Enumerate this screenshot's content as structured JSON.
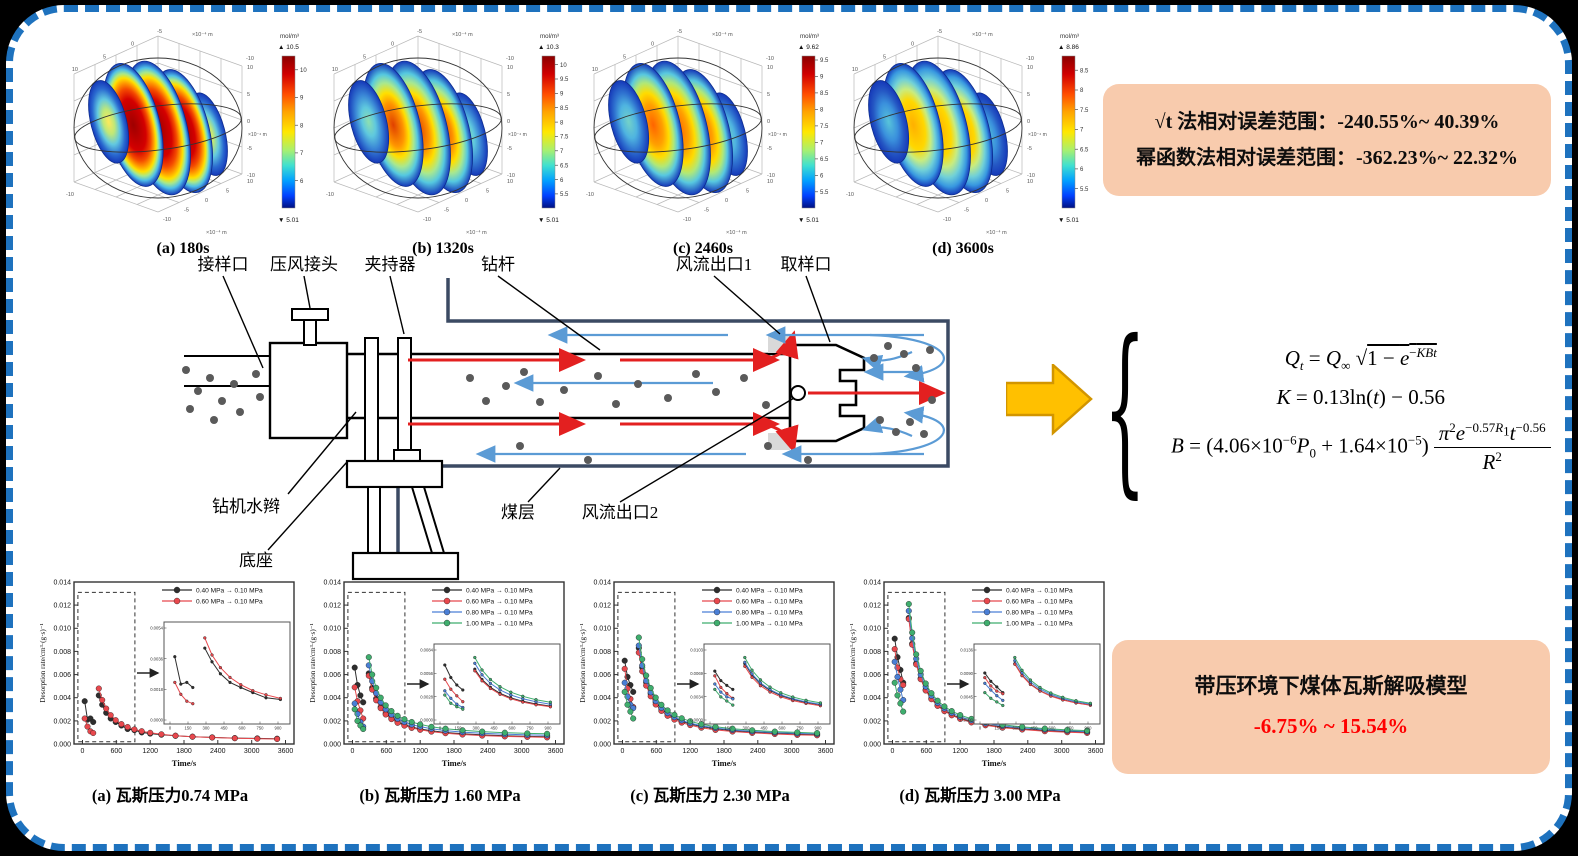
{
  "figure": {
    "border_color": "#1e72be",
    "background": "#ffffff",
    "box_color": "#f8cbad"
  },
  "plots3d": {
    "unit_label": "mol/m³",
    "axis_unit": "×10⁻⁴ m",
    "axis_ticks_top": [
      "10",
      "5",
      "0",
      "-5"
    ],
    "axis_ticks_vertical": [
      "10",
      "5",
      "0",
      "-5",
      "-10"
    ],
    "axis_ticks_bottom": [
      "10",
      "5",
      "0",
      "-5",
      "-10"
    ],
    "colorbar_min_label": "5.01",
    "colorbar_stops": [
      [
        0,
        "#8b0000"
      ],
      [
        0.12,
        "#d10000"
      ],
      [
        0.25,
        "#ff4d00"
      ],
      [
        0.37,
        "#ffa500"
      ],
      [
        0.5,
        "#ffe800"
      ],
      [
        0.62,
        "#a8f070"
      ],
      [
        0.72,
        "#40e0d0"
      ],
      [
        0.82,
        "#00a0ff"
      ],
      [
        0.92,
        "#0040ff"
      ],
      [
        1,
        "#001080"
      ]
    ],
    "items": [
      {
        "caption": "(a) 180s",
        "max": 10.5,
        "max_label": "10.5",
        "min": 5.01,
        "ticks": [
          10,
          9,
          8,
          7,
          6
        ],
        "stops": [
          [
            0,
            "#9e0000"
          ],
          [
            0.42,
            "#d40000"
          ],
          [
            0.58,
            "#f44a00"
          ],
          [
            0.68,
            "#ff9a00"
          ],
          [
            0.76,
            "#ffe100"
          ],
          [
            0.83,
            "#a8e88a"
          ],
          [
            0.9,
            "#4fc0e8"
          ],
          [
            1,
            "#1538b8"
          ]
        ],
        "stops_outer": [
          [
            0,
            "#ffe95a"
          ],
          [
            0.3,
            "#bfe878"
          ],
          [
            0.55,
            "#62c8e0"
          ],
          [
            0.8,
            "#2a6ad0"
          ],
          [
            1,
            "#1538b8"
          ]
        ]
      },
      {
        "caption": "(b) 1320s",
        "max": 10.3,
        "max_label": "10.3",
        "min": 5.01,
        "ticks": [
          10,
          9.5,
          9,
          8.5,
          8,
          7.5,
          7,
          6.5,
          6,
          5.5
        ],
        "stops": [
          [
            0,
            "#e04000"
          ],
          [
            0.35,
            "#ff9500"
          ],
          [
            0.52,
            "#ffe000"
          ],
          [
            0.68,
            "#a8e890"
          ],
          [
            0.82,
            "#55c8e0"
          ],
          [
            1,
            "#1538b8"
          ]
        ],
        "stops_outer": [
          [
            0,
            "#8ee0b0"
          ],
          [
            0.35,
            "#5fc8de"
          ],
          [
            0.65,
            "#3a86d6"
          ],
          [
            1,
            "#1538b8"
          ]
        ]
      },
      {
        "caption": "(c) 2460s",
        "max": 9.62,
        "max_label": "9.62",
        "min": 5.01,
        "ticks": [
          9.5,
          9,
          8.5,
          8,
          7.5,
          7,
          6.5,
          6,
          5.5
        ],
        "stops": [
          [
            0,
            "#ff6400"
          ],
          [
            0.33,
            "#ffa000"
          ],
          [
            0.52,
            "#ffdc00"
          ],
          [
            0.68,
            "#b0e878"
          ],
          [
            0.82,
            "#58c8e0"
          ],
          [
            1,
            "#1538b8"
          ]
        ],
        "stops_outer": [
          [
            0,
            "#74d2c8"
          ],
          [
            0.4,
            "#4fb4e0"
          ],
          [
            0.7,
            "#2f72d0"
          ],
          [
            1,
            "#1538b8"
          ]
        ]
      },
      {
        "caption": "(d) 3600s",
        "max": 8.86,
        "max_label": "8.86",
        "min": 5.01,
        "ticks": [
          8.5,
          8,
          7.5,
          7,
          6.5,
          6,
          5.5
        ],
        "stops": [
          [
            0,
            "#ffb000"
          ],
          [
            0.4,
            "#ffd800"
          ],
          [
            0.58,
            "#c8ec80"
          ],
          [
            0.74,
            "#70d0d8"
          ],
          [
            0.88,
            "#3898e0"
          ],
          [
            1,
            "#1538b8"
          ]
        ],
        "stops_outer": [
          [
            0,
            "#58c4da"
          ],
          [
            0.45,
            "#3a90dc"
          ],
          [
            0.75,
            "#2558c4"
          ],
          [
            1,
            "#1538b8"
          ]
        ]
      }
    ]
  },
  "error_box": {
    "line1": "√t 法相对误差范围：-240.55%~ 40.39%",
    "line2": "幂函数法相对误差范围：-362.23%~ 22.32%"
  },
  "model_box": {
    "title": "带压环境下煤体瓦斯解吸模型",
    "range": "-6.75% ~ 15.54%",
    "range_color": "#ff0000"
  },
  "equations": {
    "eq1": "<i>Q</i><sub><i>t</i></sub> = <i>Q</i><sub>∞</sub> √<span class=\"ol\">1 − <i>e</i><sup>−<i>KBt</i></sup></span>",
    "eq2": "<i>K</i> = 0.13ln(<i>t</i>) − 0.56",
    "eq3": "<i>B</i> = (4.06×10<sup>−6</sup><i>P</i><sub>0</sub> + 1.64×10<sup>−5</sup>)<span class=\"frac\"><span class=\"num\"><i>π</i><sup>2</sup><i>e</i><sup>−0.57<i>R</i><sub>1</sub></sup><i>t</i><sup>−0.56</sup></span><span class=\"den\"><i>R</i><sup>2</sup></span></span>"
  },
  "schematic": {
    "top_labels": [
      "接样口",
      "压风接头",
      "夹持器",
      "钻杆",
      "风流出口1",
      "取样口"
    ],
    "bottom_labels": [
      "钻机水辫",
      "底座",
      "煤层",
      "风流出口2"
    ],
    "air_in_color": "#e32020",
    "air_return_color": "#5b9bd5",
    "particle_color": "#5a5a5a"
  },
  "chart_data": {
    "type": "scatter",
    "shared": {
      "xlabel": "Time/s",
      "ylabel": "Desorption rate/cm³·(g·s)⁻¹",
      "xticks": [
        0,
        600,
        1200,
        1800,
        2400,
        3000,
        3600
      ],
      "xlim": [
        -150,
        3750
      ],
      "ylim": [
        0,
        0.014
      ],
      "ytick_step": 0.002,
      "t_first": [
        40,
        90,
        140,
        190
      ],
      "t_main": [
        290,
        350,
        420,
        500,
        590,
        690,
        800,
        920,
        1050,
        1200,
        1400,
        1650,
        1950,
        2300,
        2700,
        3100,
        3450
      ],
      "legend_position": "top-right",
      "grid": false
    },
    "items": [
      {
        "title": "(a) 瓦斯压力0.74 MPa",
        "series": [
          {
            "name": "0.40 MPa → 0.10 MPa",
            "color": "#2e2e2e",
            "first": [
              0.0037,
              0.0021,
              0.0022,
              0.0019
            ],
            "main": [
              0.0042,
              0.0034,
              0.0027,
              0.0022,
              0.0019,
              0.0016,
              0.0013,
              0.0012,
              0.001,
              0.0009,
              0.0008,
              0.00071,
              0.00063,
              0.00057,
              0.00051,
              0.00048,
              0.00046
            ]
          },
          {
            "name": "0.60 MPa → 0.10 MPa",
            "color": "#e8484d",
            "first": [
              0.0022,
              0.0015,
              0.0011,
              0.00095
            ],
            "main": [
              0.0048,
              0.0038,
              0.00306,
              0.00249,
              0.00206,
              0.00172,
              0.00147,
              0.00126,
              0.00111,
              0.00097,
              0.00084,
              0.00072,
              0.00063,
              0.00056,
              0.0005,
              0.00046,
              0.00043
            ]
          }
        ]
      },
      {
        "title": "(b) 瓦斯压力 1.60 MPa",
        "series": [
          {
            "name": "0.40 MPa → 0.10 MPa",
            "color": "#2e2e2e",
            "first": [
              0.0066,
              0.0051,
              0.0042,
              0.0036
            ],
            "main": [
              0.0061,
              0.00486,
              0.00392,
              0.00321,
              0.00266,
              0.00225,
              0.00192,
              0.00167,
              0.00147,
              0.0013,
              0.00114,
              0.00099,
              0.00088,
              0.00079,
              0.00071,
              0.00066,
              0.00063
            ]
          },
          {
            "name": "0.60 MPa → 0.10 MPa",
            "color": "#e8484d",
            "first": [
              0.0049,
              0.0037,
              0.0029,
              0.0022
            ],
            "main": [
              0.0059,
              0.0047,
              0.00378,
              0.00309,
              0.00255,
              0.00215,
              0.00183,
              0.00159,
              0.00139,
              0.00123,
              0.00107,
              0.00093,
              0.00082,
              0.00073,
              0.00066,
              0.00061,
              0.00057
            ]
          },
          {
            "name": "0.80 MPa → 0.10 MPa",
            "color": "#4a7fd6",
            "first": [
              0.0035,
              0.0026,
              0.0019,
              0.0015
            ],
            "main": [
              0.0068,
              0.00543,
              0.00439,
              0.00361,
              0.003,
              0.00254,
              0.00218,
              0.0019,
              0.00168,
              0.0015,
              0.00131,
              0.00116,
              0.00103,
              0.00093,
              0.00085,
              0.00079,
              0.00075
            ]
          },
          {
            "name": "1.00 MPa → 0.10 MPa",
            "color": "#3fae6e",
            "first": [
              0.003,
              0.002,
              0.0016,
              0.0013
            ],
            "main": [
              0.0075,
              0.006,
              0.00486,
              0.004,
              0.00334,
              0.00284,
              0.00244,
              0.00214,
              0.0019,
              0.00169,
              0.00149,
              0.00132,
              0.00118,
              0.00107,
              0.00098,
              0.00092,
              0.00088
            ]
          }
        ]
      },
      {
        "title": "(c) 瓦斯压力 2.30 MPa",
        "series": [
          {
            "name": "0.40 MPa → 0.10 MPa",
            "color": "#2e2e2e",
            "first": [
              0.0072,
              0.0058,
              0.0051,
              0.0045
            ],
            "main": [
              0.0083,
              0.00661,
              0.00532,
              0.00435,
              0.0036,
              0.00303,
              0.00258,
              0.00224,
              0.00197,
              0.00173,
              0.00151,
              0.00131,
              0.00116,
              0.00103,
              0.00093,
              0.00086,
              0.00081
            ]
          },
          {
            "name": "0.60 MPa → 0.10 MPa",
            "color": "#e8484d",
            "first": [
              0.0065,
              0.0048,
              0.0039,
              0.0032
            ],
            "main": [
              0.0079,
              0.00628,
              0.00505,
              0.00412,
              0.00341,
              0.00286,
              0.00244,
              0.00211,
              0.00185,
              0.00163,
              0.00141,
              0.00122,
              0.00108,
              0.00096,
              0.00086,
              0.00079,
              0.00075
            ]
          },
          {
            "name": "0.80 MPa → 0.10 MPa",
            "color": "#4a7fd6",
            "first": [
              0.0053,
              0.0041,
              0.0034,
              0.0031
            ],
            "main": [
              0.0085,
              0.00678,
              0.00546,
              0.00447,
              0.00371,
              0.00313,
              0.00267,
              0.00232,
              0.00204,
              0.00181,
              0.00158,
              0.00138,
              0.00122,
              0.00109,
              0.00099,
              0.00092,
              0.00087
            ]
          },
          {
            "name": "1.00 MPa → 0.10 MPa",
            "color": "#3fae6e",
            "first": [
              0.0045,
              0.0034,
              0.0028,
              0.0022
            ],
            "main": [
              0.0092,
              0.00733,
              0.00592,
              0.00484,
              0.00401,
              0.00339,
              0.0029,
              0.00252,
              0.00222,
              0.00196,
              0.00171,
              0.00149,
              0.00132,
              0.00118,
              0.00107,
              0.001,
              0.00094
            ]
          }
        ]
      },
      {
        "title": "(d) 瓦斯压力 3.00 MPa",
        "series": [
          {
            "name": "0.40 MPa → 0.10 MPa",
            "color": "#2e2e2e",
            "first": [
              0.0091,
              0.0075,
              0.0064,
              0.0053
            ],
            "main": [
              0.0109,
              0.00867,
              0.00697,
              0.00568,
              0.00469,
              0.00394,
              0.00335,
              0.0029,
              0.00254,
              0.00223,
              0.00193,
              0.00167,
              0.00147,
              0.0013,
              0.00117,
              0.00107,
              0.00101
            ]
          },
          {
            "name": "0.60 MPa → 0.10 MPa",
            "color": "#e8484d",
            "first": [
              0.0082,
              0.0066,
              0.0056,
              0.0051
            ],
            "main": [
              0.0108,
              0.00858,
              0.00688,
              0.0056,
              0.00462,
              0.00387,
              0.00329,
              0.00284,
              0.00248,
              0.00217,
              0.00187,
              0.00162,
              0.00141,
              0.00125,
              0.00111,
              0.00102,
              0.00096
            ]
          },
          {
            "name": "0.80 MPa → 0.10 MPa",
            "color": "#4a7fd6",
            "first": [
              0.0071,
              0.0058,
              0.0047,
              0.0038
            ],
            "main": [
              0.0115,
              0.00914,
              0.00736,
              0.006,
              0.00496,
              0.00417,
              0.00355,
              0.00307,
              0.00269,
              0.00236,
              0.00205,
              0.00178,
              0.00156,
              0.00139,
              0.00125,
              0.00115,
              0.00108
            ]
          },
          {
            "name": "1.00 MPa → 0.10 MPa",
            "color": "#3fae6e",
            "first": [
              0.0053,
              0.0042,
              0.0035,
              0.0028
            ],
            "main": [
              0.0121,
              0.00963,
              0.00774,
              0.00632,
              0.00523,
              0.00439,
              0.00374,
              0.00324,
              0.00284,
              0.0025,
              0.00217,
              0.00189,
              0.00166,
              0.00148,
              0.00133,
              0.00122,
              0.00116
            ]
          }
        ]
      }
    ]
  }
}
